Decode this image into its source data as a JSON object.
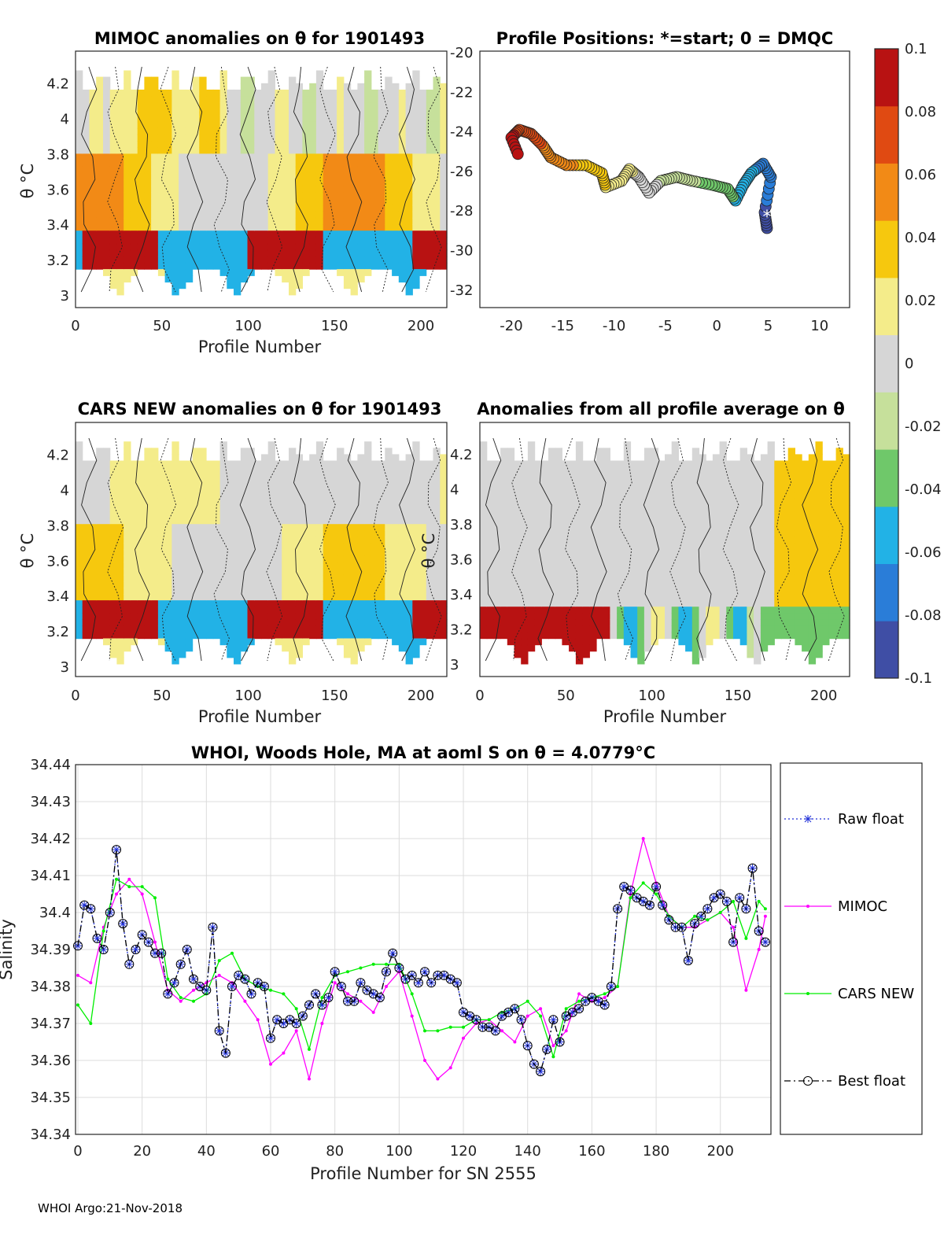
{
  "colors": {
    "raw": "#1f2fd8",
    "mimoc": "#ff00ff",
    "cars": "#00ee00",
    "best": "#000000",
    "colorbar": [
      "#3f4ea5",
      "#2a7dd8",
      "#22b2e6",
      "#6fc86a",
      "#c6e09b",
      "#d6d6d6",
      "#f4ec8a",
      "#f6c80e",
      "#f28a16",
      "#e04a12",
      "#b81212"
    ]
  },
  "panels": {
    "mimoc": {
      "title": "MIMOC anomalies on θ  for 1901493",
      "ylabel": "θ °C",
      "xlabel": "Profile Number",
      "yticks": [
        "4.2",
        "4",
        "3.8",
        "3.6",
        "3.4",
        "3.2",
        "3"
      ],
      "xticks": [
        "0",
        "50",
        "100",
        "150",
        "200"
      ]
    },
    "positions": {
      "title": "Profile Positions: *=start; 0 = DMQC",
      "yticks": [
        "-20",
        "-22",
        "-24",
        "-26",
        "-28",
        "-30",
        "-32"
      ],
      "xticks": [
        "-20",
        "-15",
        "-10",
        "-5",
        "0",
        "5",
        "10"
      ]
    },
    "cars": {
      "title": "CARS NEW anomalies on θ for 1901493",
      "ylabel": "θ °C",
      "xlabel": "Profile Number",
      "yticks": [
        "4.2",
        "4",
        "3.8",
        "3.6",
        "3.4",
        "3.2",
        "3"
      ],
      "xticks": [
        "0",
        "50",
        "100",
        "150",
        "200"
      ]
    },
    "avg": {
      "title": "Anomalies from all profile average on θ",
      "ylabel": "θ °C",
      "xlabel": "Profile Number",
      "yticks": [
        "4.2",
        "4",
        "3.8",
        "3.6",
        "3.4",
        "3.2",
        "3"
      ],
      "xticks": [
        "0",
        "50",
        "100",
        "150",
        "200"
      ]
    }
  },
  "colorbar": {
    "ticks": [
      "0.1",
      "0.08",
      "0.06",
      "0.04",
      "0.02",
      "0",
      "-0.02",
      "-0.04",
      "-0.06",
      "-0.08",
      "-0.1"
    ]
  },
  "footer": "WHOI Argo:21-Nov-2018",
  "chart_data": {
    "type": "line",
    "title": "WHOI, Woods Hole, MA at aoml S on θ = 4.0779°C",
    "xlabel": "Profile Number for SN 2555",
    "ylabel": "Salinity",
    "xlim": [
      0,
      215
    ],
    "ylim": [
      34.34,
      34.44
    ],
    "xticks": [
      "0",
      "20",
      "40",
      "60",
      "80",
      "100",
      "120",
      "140",
      "160",
      "180",
      "200"
    ],
    "yticks": [
      "34.44",
      "34.43",
      "34.42",
      "34.41",
      "34.4",
      "34.39",
      "34.38",
      "34.37",
      "34.36",
      "34.35",
      "34.34"
    ],
    "legend": [
      "Raw float",
      "MIMOC",
      "CARS NEW",
      "Best float"
    ],
    "legend_position": "outside-right",
    "series": [
      {
        "name": "Raw float",
        "x": [
          0,
          2,
          4,
          6,
          8,
          10,
          12,
          14,
          16,
          18,
          20,
          22,
          24,
          26,
          28,
          30,
          32,
          34,
          36,
          38,
          40,
          42,
          44,
          46,
          48,
          50,
          52,
          54,
          56,
          58,
          60,
          62,
          64,
          66,
          68,
          70,
          72,
          74,
          76,
          78,
          80,
          82,
          84,
          86,
          88,
          90,
          92,
          94,
          96,
          98,
          100,
          102,
          104,
          106,
          108,
          110,
          112,
          114,
          116,
          118,
          120,
          122,
          124,
          126,
          128,
          130,
          132,
          134,
          136,
          138,
          140,
          142,
          144,
          146,
          148,
          150,
          152,
          154,
          156,
          158,
          160,
          162,
          164,
          166,
          168,
          170,
          172,
          174,
          176,
          178,
          180,
          182,
          184,
          186,
          188,
          190,
          192,
          194,
          196,
          198,
          200,
          202,
          204,
          206,
          208,
          210,
          212,
          214
        ],
        "values": [
          34.391,
          34.402,
          34.401,
          34.393,
          34.39,
          34.4,
          34.417,
          34.397,
          34.386,
          34.39,
          34.394,
          34.392,
          34.389,
          34.389,
          34.378,
          34.381,
          34.386,
          34.39,
          34.382,
          34.38,
          34.379,
          34.396,
          34.368,
          34.362,
          34.38,
          34.383,
          34.382,
          34.378,
          34.381,
          34.38,
          34.366,
          34.371,
          34.37,
          34.371,
          34.37,
          34.372,
          34.375,
          34.378,
          34.375,
          34.377,
          34.384,
          34.38,
          34.376,
          34.376,
          34.381,
          34.379,
          34.378,
          34.377,
          34.384,
          34.389,
          34.385,
          34.382,
          34.383,
          34.381,
          34.384,
          34.381,
          34.383,
          34.383,
          34.382,
          34.381,
          34.373,
          34.372,
          34.371,
          34.369,
          34.369,
          34.368,
          34.372,
          34.373,
          34.374,
          34.371,
          34.364,
          34.359,
          34.357,
          34.363,
          34.371,
          34.365,
          34.372,
          34.373,
          34.374,
          34.376,
          34.377,
          34.376,
          34.375,
          34.38,
          34.401,
          34.407,
          34.406,
          34.404,
          34.403,
          34.402,
          34.407,
          34.402,
          34.398,
          34.396,
          34.396,
          34.387,
          34.397,
          34.399,
          34.401,
          34.404,
          34.405,
          34.403,
          34.392,
          34.404,
          34.401,
          34.412,
          34.395,
          34.392
        ]
      },
      {
        "name": "MIMOC",
        "x": [
          0,
          4,
          8,
          12,
          16,
          20,
          24,
          28,
          32,
          36,
          40,
          44,
          48,
          52,
          56,
          60,
          64,
          68,
          72,
          76,
          80,
          84,
          88,
          92,
          96,
          100,
          104,
          108,
          112,
          116,
          120,
          124,
          128,
          132,
          136,
          140,
          144,
          148,
          152,
          156,
          160,
          164,
          168,
          172,
          176,
          180,
          184,
          188,
          192,
          196,
          200,
          204,
          208,
          212,
          214
        ],
        "values": [
          34.383,
          34.381,
          34.396,
          34.405,
          34.409,
          34.405,
          34.392,
          34.379,
          34.376,
          34.379,
          34.381,
          34.383,
          34.381,
          34.376,
          34.371,
          34.359,
          34.362,
          34.368,
          34.355,
          34.37,
          34.381,
          34.378,
          34.376,
          34.373,
          34.38,
          34.384,
          34.372,
          34.36,
          34.355,
          34.358,
          34.366,
          34.37,
          34.371,
          34.368,
          34.365,
          34.372,
          34.374,
          34.364,
          34.368,
          34.378,
          34.376,
          34.377,
          34.38,
          34.405,
          34.42,
          34.408,
          34.399,
          34.396,
          34.396,
          34.398,
          34.4,
          34.396,
          34.379,
          34.39,
          34.399
        ]
      },
      {
        "name": "CARS NEW",
        "x": [
          0,
          4,
          8,
          12,
          16,
          20,
          24,
          28,
          32,
          36,
          40,
          44,
          48,
          52,
          56,
          60,
          64,
          68,
          72,
          76,
          80,
          84,
          88,
          92,
          96,
          100,
          104,
          108,
          112,
          116,
          120,
          124,
          128,
          132,
          136,
          140,
          144,
          148,
          152,
          156,
          160,
          164,
          168,
          172,
          176,
          180,
          184,
          188,
          192,
          196,
          200,
          204,
          208,
          212,
          214
        ],
        "values": [
          34.375,
          34.37,
          34.395,
          34.409,
          34.407,
          34.407,
          34.404,
          34.382,
          34.377,
          34.376,
          34.378,
          34.387,
          34.389,
          34.382,
          34.38,
          34.379,
          34.378,
          34.374,
          34.363,
          34.377,
          34.383,
          34.384,
          34.385,
          34.386,
          34.386,
          34.386,
          34.378,
          34.368,
          34.368,
          34.369,
          34.369,
          34.371,
          34.371,
          34.373,
          34.374,
          34.376,
          34.372,
          34.361,
          34.374,
          34.376,
          34.377,
          34.378,
          34.38,
          34.404,
          34.408,
          34.405,
          34.399,
          34.396,
          34.399,
          34.398,
          34.4,
          34.403,
          34.393,
          34.403,
          34.401
        ]
      },
      {
        "name": "Best float",
        "x": [
          0,
          2,
          4,
          6,
          8,
          10,
          12,
          14,
          16,
          18,
          20,
          22,
          24,
          26,
          28,
          30,
          32,
          34,
          36,
          38,
          40,
          42,
          44,
          46,
          48,
          50,
          52,
          54,
          56,
          58,
          60,
          62,
          64,
          66,
          68,
          70,
          72,
          74,
          76,
          78,
          80,
          82,
          84,
          86,
          88,
          90,
          92,
          94,
          96,
          98,
          100,
          102,
          104,
          106,
          108,
          110,
          112,
          114,
          116,
          118,
          120,
          122,
          124,
          126,
          128,
          130,
          132,
          134,
          136,
          138,
          140,
          142,
          144,
          146,
          148,
          150,
          152,
          154,
          156,
          158,
          160,
          162,
          164,
          166,
          168,
          170,
          172,
          174,
          176,
          178,
          180,
          182,
          184,
          186,
          188,
          190,
          192,
          194,
          196,
          198,
          200,
          202,
          204,
          206,
          208,
          210,
          212,
          214
        ],
        "values": [
          34.391,
          34.402,
          34.401,
          34.393,
          34.39,
          34.4,
          34.417,
          34.397,
          34.386,
          34.39,
          34.394,
          34.392,
          34.389,
          34.389,
          34.378,
          34.381,
          34.386,
          34.39,
          34.382,
          34.38,
          34.379,
          34.396,
          34.368,
          34.362,
          34.38,
          34.383,
          34.382,
          34.378,
          34.381,
          34.38,
          34.366,
          34.371,
          34.37,
          34.371,
          34.37,
          34.372,
          34.375,
          34.378,
          34.375,
          34.377,
          34.384,
          34.38,
          34.376,
          34.376,
          34.381,
          34.379,
          34.378,
          34.377,
          34.384,
          34.389,
          34.385,
          34.382,
          34.383,
          34.381,
          34.384,
          34.381,
          34.383,
          34.383,
          34.382,
          34.381,
          34.373,
          34.372,
          34.371,
          34.369,
          34.369,
          34.368,
          34.372,
          34.373,
          34.374,
          34.371,
          34.364,
          34.359,
          34.357,
          34.363,
          34.371,
          34.365,
          34.372,
          34.373,
          34.374,
          34.376,
          34.377,
          34.376,
          34.375,
          34.38,
          34.401,
          34.407,
          34.406,
          34.404,
          34.403,
          34.402,
          34.407,
          34.402,
          34.398,
          34.396,
          34.396,
          34.387,
          34.397,
          34.399,
          34.401,
          34.404,
          34.405,
          34.403,
          34.392,
          34.404,
          34.401,
          34.412,
          34.395,
          34.392
        ]
      }
    ]
  }
}
